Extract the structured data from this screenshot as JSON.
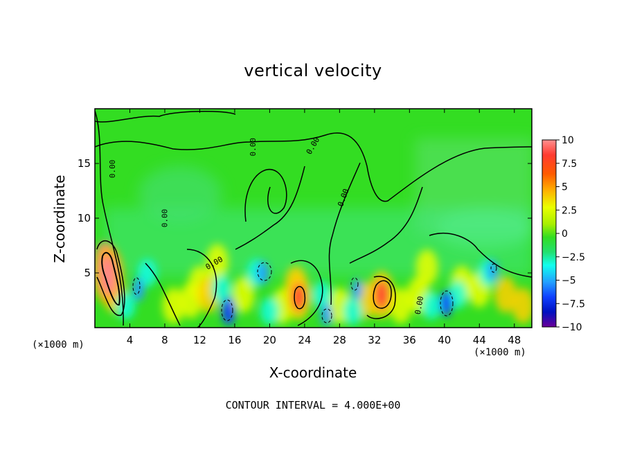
{
  "chart_data": {
    "type": "heatmap",
    "title": "vertical velocity",
    "xlabel": "X-coordinate",
    "ylabel": "Z-coordinate",
    "x_unit": "(×1000 m)",
    "xlim": [
      0,
      50
    ],
    "ylim": [
      0,
      20
    ],
    "xticks": [
      4,
      8,
      12,
      16,
      20,
      24,
      28,
      32,
      36,
      40,
      44,
      48
    ],
    "yticks": [
      5,
      10,
      15
    ],
    "colorbar": {
      "ticks": [
        "10",
        "7.5",
        "5",
        "2.5",
        "0",
        "−2.5",
        "−5",
        "−7.5",
        "−10"
      ],
      "min": -10,
      "max": 10
    },
    "contour_labels": [
      "0.00",
      "0.00",
      "0.00",
      "0.00",
      "0.00",
      "0.00",
      "0.00"
    ],
    "footer": "CONTOUR INTERVAL = 4.000E+00",
    "features": [
      {
        "x": 1.5,
        "z": 4.8,
        "value": 10
      },
      {
        "x": 23.3,
        "z": 2.8,
        "value": 5.5
      },
      {
        "x": 32.8,
        "z": 3.0,
        "value": 6
      },
      {
        "x": 15.3,
        "z": 1.5,
        "value": -6
      },
      {
        "x": 40.2,
        "z": 2.2,
        "value": -5
      },
      {
        "x": 19.2,
        "z": 5.0,
        "value": -4
      },
      {
        "x": 26.5,
        "z": 1.2,
        "value": -4
      },
      {
        "x": 5.0,
        "z": 3.5,
        "value": -4
      },
      {
        "x": 30.0,
        "z": 3.5,
        "value": -3
      },
      {
        "x": 45.5,
        "z": 5.2,
        "value": -3
      }
    ]
  },
  "colors": {
    "frame": "#000000",
    "field_base": "#33dd22"
  }
}
